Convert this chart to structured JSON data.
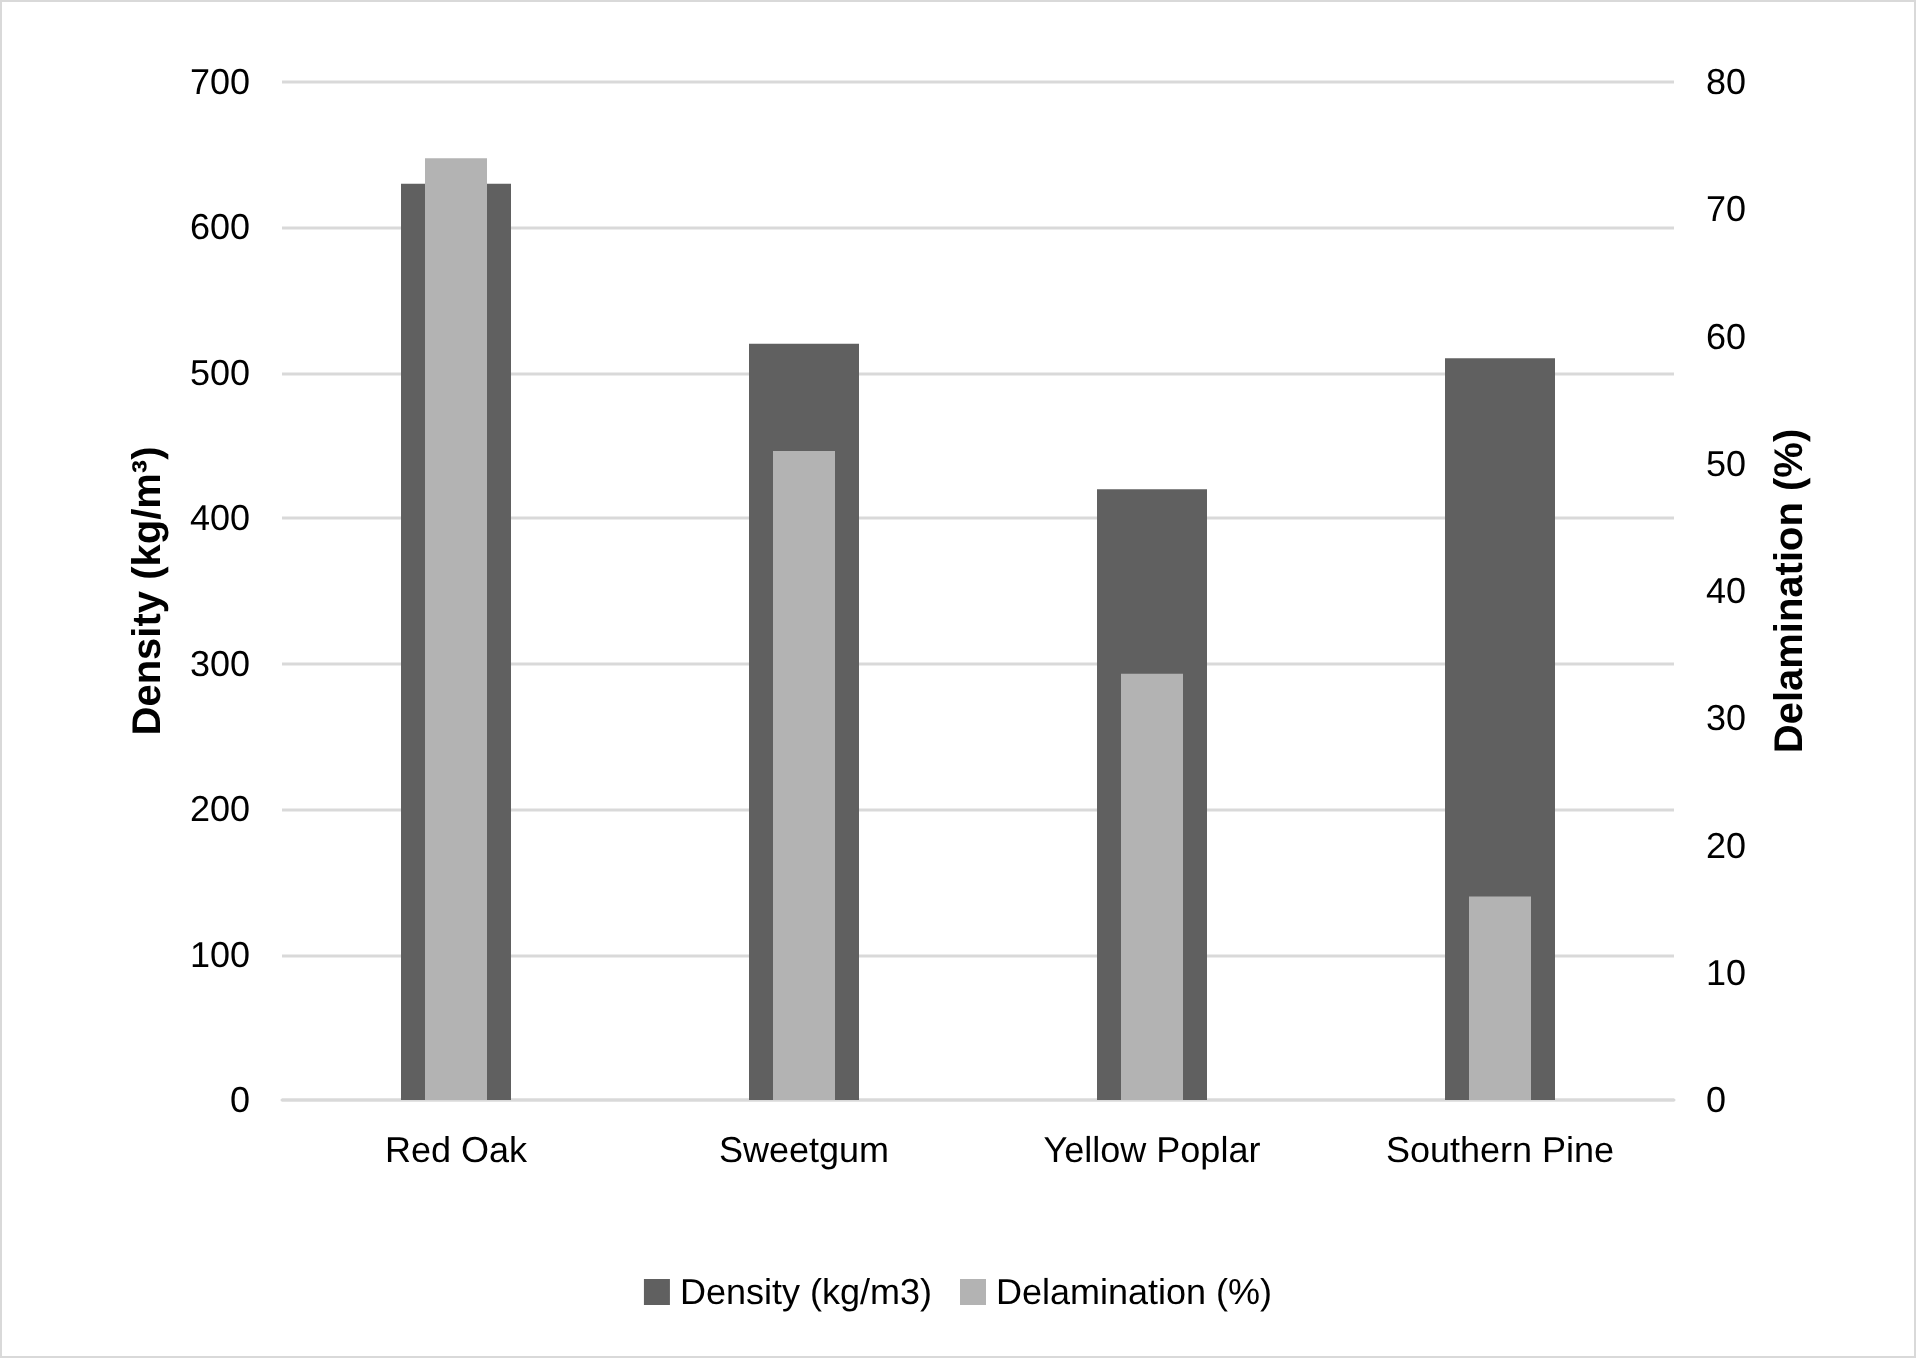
{
  "chart_data": {
    "type": "bar",
    "categories": [
      "Red Oak",
      "Sweetgum",
      "Yellow Poplar",
      "Southern Pine"
    ],
    "series": [
      {
        "name": "Density (kg/m3)",
        "color": "#606060",
        "values": [
          630,
          520,
          420,
          510
        ]
      },
      {
        "name": "Delamination (%)",
        "color": "#b3b3b3",
        "values": [
          74,
          51,
          33.5,
          16
        ],
        "axis": "y2"
      }
    ],
    "ylabel": "Density (kg/m³)",
    "y2label": "Delamination (%)",
    "ylim": [
      0,
      700
    ],
    "yticks": [
      0,
      100,
      200,
      300,
      400,
      500,
      600,
      700
    ],
    "y2lim": [
      0,
      80
    ],
    "y2ticks": [
      0,
      10,
      20,
      30,
      40,
      50,
      60,
      70,
      80
    ],
    "grid": "y",
    "legend": "bottom"
  }
}
